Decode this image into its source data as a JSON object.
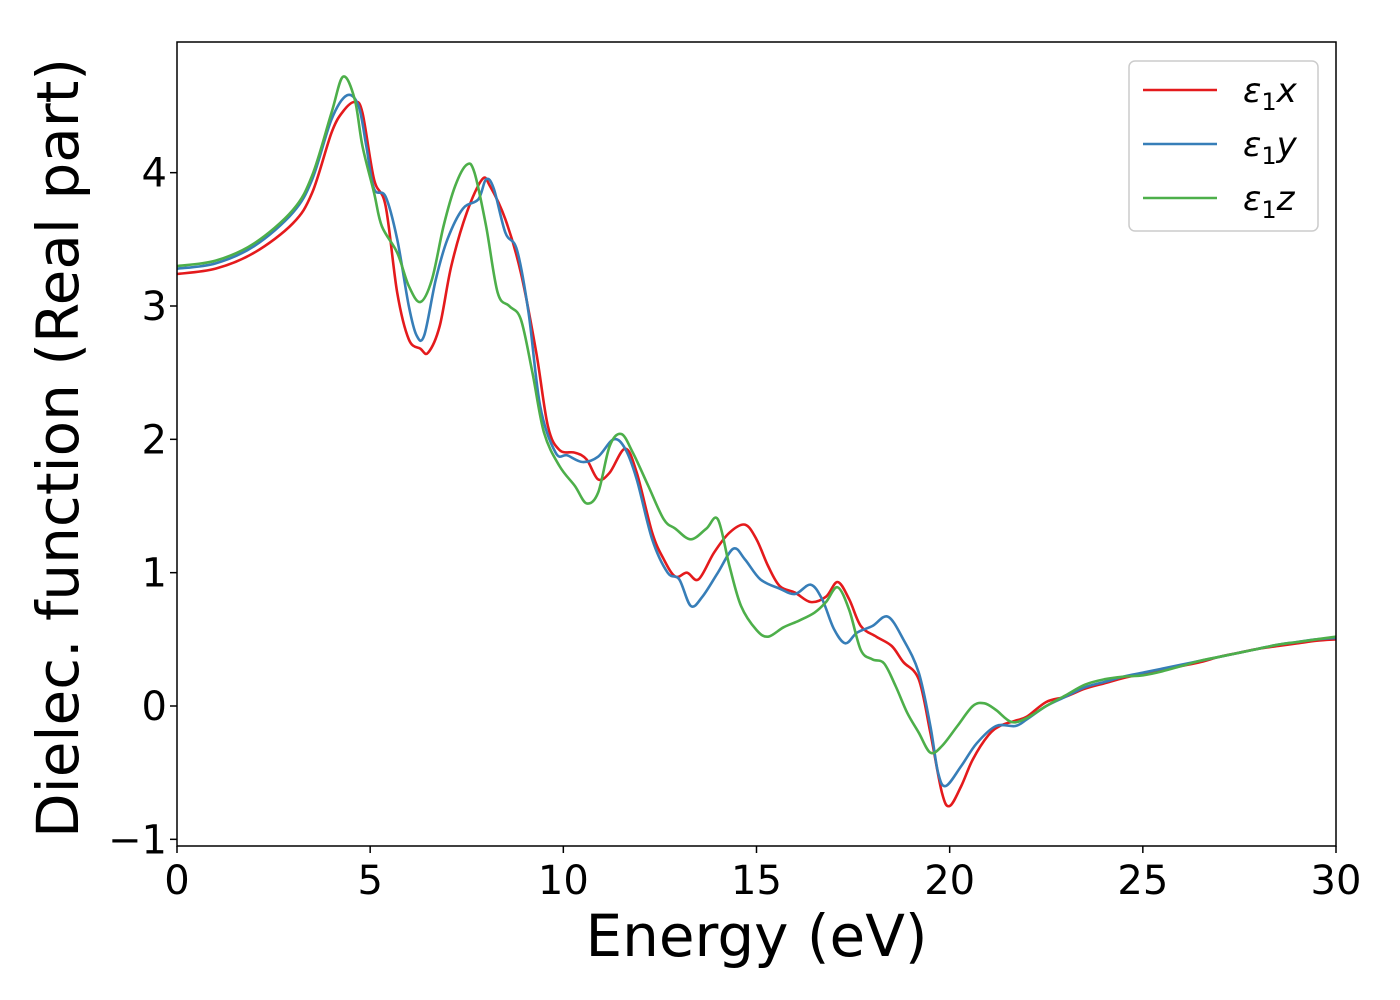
{
  "chart_data": {
    "type": "line",
    "title": "",
    "xlabel": "Energy (eV)",
    "ylabel": "Dielec. function (Real part)",
    "xlim": [
      0,
      30
    ],
    "ylim": [
      -1.05,
      4.98
    ],
    "xticks": [
      0,
      5,
      10,
      15,
      20,
      25,
      30
    ],
    "xtick_labels": [
      "0",
      "5",
      "10",
      "15",
      "20",
      "25",
      "30"
    ],
    "yticks": [
      -1,
      0,
      1,
      2,
      3,
      4
    ],
    "ytick_labels": [
      "−1",
      "0",
      "1",
      "2",
      "3",
      "4"
    ],
    "grid": false,
    "legend_position": "top-right",
    "series": [
      {
        "name": "ε₁x",
        "legend": {
          "base": "ε",
          "sub": "1",
          "var": "x"
        },
        "color": "#e41a1c",
        "points": [
          [
            0,
            3.24
          ],
          [
            1,
            3.28
          ],
          [
            2,
            3.4
          ],
          [
            3,
            3.62
          ],
          [
            3.5,
            3.85
          ],
          [
            4,
            4.3
          ],
          [
            4.3,
            4.46
          ],
          [
            4.6,
            4.53
          ],
          [
            4.8,
            4.45
          ],
          [
            5.1,
            3.95
          ],
          [
            5.4,
            3.75
          ],
          [
            5.7,
            3.1
          ],
          [
            6,
            2.75
          ],
          [
            6.3,
            2.68
          ],
          [
            6.5,
            2.65
          ],
          [
            6.8,
            2.85
          ],
          [
            7.1,
            3.3
          ],
          [
            7.5,
            3.7
          ],
          [
            7.9,
            3.95
          ],
          [
            8.1,
            3.9
          ],
          [
            8.5,
            3.65
          ],
          [
            8.9,
            3.25
          ],
          [
            9.3,
            2.65
          ],
          [
            9.6,
            2.1
          ],
          [
            9.9,
            1.92
          ],
          [
            10.3,
            1.9
          ],
          [
            10.6,
            1.85
          ],
          [
            10.9,
            1.7
          ],
          [
            11.2,
            1.75
          ],
          [
            11.6,
            1.93
          ],
          [
            11.9,
            1.75
          ],
          [
            12.3,
            1.3
          ],
          [
            12.6,
            1.1
          ],
          [
            12.9,
            0.97
          ],
          [
            13.2,
            1.0
          ],
          [
            13.5,
            0.95
          ],
          [
            13.9,
            1.15
          ],
          [
            14.3,
            1.3
          ],
          [
            14.7,
            1.36
          ],
          [
            15,
            1.25
          ],
          [
            15.3,
            1.05
          ],
          [
            15.6,
            0.9
          ],
          [
            16,
            0.85
          ],
          [
            16.4,
            0.78
          ],
          [
            16.8,
            0.82
          ],
          [
            17.1,
            0.93
          ],
          [
            17.4,
            0.8
          ],
          [
            17.7,
            0.6
          ],
          [
            18.1,
            0.52
          ],
          [
            18.5,
            0.45
          ],
          [
            18.8,
            0.33
          ],
          [
            19.2,
            0.2
          ],
          [
            19.5,
            -0.2
          ],
          [
            19.8,
            -0.65
          ],
          [
            20,
            -0.75
          ],
          [
            20.3,
            -0.6
          ],
          [
            20.6,
            -0.4
          ],
          [
            21,
            -0.22
          ],
          [
            21.3,
            -0.15
          ],
          [
            21.7,
            -0.11
          ],
          [
            22,
            -0.08
          ],
          [
            22.5,
            0.03
          ],
          [
            23,
            0.07
          ],
          [
            23.5,
            0.13
          ],
          [
            24,
            0.17
          ],
          [
            24.5,
            0.21
          ],
          [
            25,
            0.24
          ],
          [
            25.5,
            0.27
          ],
          [
            26,
            0.3
          ],
          [
            26.5,
            0.33
          ],
          [
            27,
            0.37
          ],
          [
            27.5,
            0.4
          ],
          [
            28,
            0.43
          ],
          [
            28.5,
            0.45
          ],
          [
            29,
            0.47
          ],
          [
            29.5,
            0.49
          ],
          [
            30,
            0.5
          ]
        ]
      },
      {
        "name": "ε₁y",
        "legend": {
          "base": "ε",
          "sub": "1",
          "var": "y"
        },
        "color": "#377eb8",
        "points": [
          [
            0,
            3.28
          ],
          [
            1,
            3.32
          ],
          [
            2,
            3.45
          ],
          [
            3,
            3.7
          ],
          [
            3.5,
            3.95
          ],
          [
            4,
            4.4
          ],
          [
            4.4,
            4.58
          ],
          [
            4.7,
            4.5
          ],
          [
            4.9,
            4.2
          ],
          [
            5.1,
            3.88
          ],
          [
            5.4,
            3.82
          ],
          [
            5.7,
            3.5
          ],
          [
            6,
            3.0
          ],
          [
            6.2,
            2.78
          ],
          [
            6.4,
            2.78
          ],
          [
            6.7,
            3.2
          ],
          [
            7,
            3.5
          ],
          [
            7.4,
            3.73
          ],
          [
            7.8,
            3.8
          ],
          [
            8,
            3.95
          ],
          [
            8.2,
            3.88
          ],
          [
            8.5,
            3.55
          ],
          [
            8.8,
            3.42
          ],
          [
            9.1,
            2.95
          ],
          [
            9.4,
            2.25
          ],
          [
            9.8,
            1.9
          ],
          [
            10.1,
            1.88
          ],
          [
            10.5,
            1.83
          ],
          [
            10.9,
            1.87
          ],
          [
            11.3,
            2.0
          ],
          [
            11.6,
            1.93
          ],
          [
            11.9,
            1.7
          ],
          [
            12.3,
            1.25
          ],
          [
            12.7,
            1.0
          ],
          [
            13,
            0.95
          ],
          [
            13.3,
            0.75
          ],
          [
            13.6,
            0.82
          ],
          [
            14,
            1.0
          ],
          [
            14.4,
            1.18
          ],
          [
            14.7,
            1.1
          ],
          [
            15.1,
            0.95
          ],
          [
            15.6,
            0.88
          ],
          [
            16,
            0.84
          ],
          [
            16.4,
            0.91
          ],
          [
            16.7,
            0.8
          ],
          [
            17,
            0.58
          ],
          [
            17.3,
            0.47
          ],
          [
            17.6,
            0.55
          ],
          [
            18,
            0.6
          ],
          [
            18.4,
            0.67
          ],
          [
            18.8,
            0.5
          ],
          [
            19.2,
            0.25
          ],
          [
            19.5,
            -0.15
          ],
          [
            19.7,
            -0.5
          ],
          [
            19.9,
            -0.6
          ],
          [
            20.3,
            -0.45
          ],
          [
            20.7,
            -0.28
          ],
          [
            21.2,
            -0.15
          ],
          [
            21.7,
            -0.15
          ],
          [
            22,
            -0.1
          ],
          [
            22.5,
            0.0
          ],
          [
            23,
            0.07
          ],
          [
            23.5,
            0.14
          ],
          [
            24,
            0.18
          ],
          [
            24.5,
            0.22
          ],
          [
            25,
            0.25
          ],
          [
            25.5,
            0.28
          ],
          [
            26,
            0.31
          ],
          [
            26.5,
            0.34
          ],
          [
            27,
            0.37
          ],
          [
            27.5,
            0.4
          ],
          [
            28,
            0.43
          ],
          [
            28.5,
            0.46
          ],
          [
            29,
            0.48
          ],
          [
            29.5,
            0.5
          ],
          [
            30,
            0.51
          ]
        ]
      },
      {
        "name": "ε₁z",
        "legend": {
          "base": "ε",
          "sub": "1",
          "var": "z"
        },
        "color": "#4daf4a",
        "points": [
          [
            0,
            3.3
          ],
          [
            1,
            3.34
          ],
          [
            2,
            3.47
          ],
          [
            3,
            3.72
          ],
          [
            3.5,
            3.98
          ],
          [
            4,
            4.45
          ],
          [
            4.3,
            4.72
          ],
          [
            4.6,
            4.55
          ],
          [
            4.8,
            4.2
          ],
          [
            5.1,
            3.85
          ],
          [
            5.3,
            3.6
          ],
          [
            5.7,
            3.4
          ],
          [
            6,
            3.15
          ],
          [
            6.3,
            3.03
          ],
          [
            6.6,
            3.2
          ],
          [
            6.9,
            3.6
          ],
          [
            7.2,
            3.9
          ],
          [
            7.5,
            4.06
          ],
          [
            7.7,
            4.0
          ],
          [
            8,
            3.6
          ],
          [
            8.3,
            3.1
          ],
          [
            8.6,
            3.0
          ],
          [
            8.9,
            2.9
          ],
          [
            9.2,
            2.5
          ],
          [
            9.5,
            2.05
          ],
          [
            9.9,
            1.8
          ],
          [
            10.3,
            1.65
          ],
          [
            10.6,
            1.52
          ],
          [
            10.9,
            1.6
          ],
          [
            11.2,
            1.95
          ],
          [
            11.5,
            2.04
          ],
          [
            11.8,
            1.9
          ],
          [
            12.2,
            1.65
          ],
          [
            12.6,
            1.4
          ],
          [
            12.9,
            1.33
          ],
          [
            13.3,
            1.25
          ],
          [
            13.7,
            1.33
          ],
          [
            14,
            1.4
          ],
          [
            14.3,
            1.05
          ],
          [
            14.6,
            0.75
          ],
          [
            15,
            0.57
          ],
          [
            15.3,
            0.52
          ],
          [
            15.7,
            0.59
          ],
          [
            16.1,
            0.64
          ],
          [
            16.5,
            0.7
          ],
          [
            16.8,
            0.78
          ],
          [
            17.1,
            0.89
          ],
          [
            17.4,
            0.72
          ],
          [
            17.7,
            0.42
          ],
          [
            18,
            0.35
          ],
          [
            18.3,
            0.32
          ],
          [
            18.6,
            0.15
          ],
          [
            18.9,
            -0.05
          ],
          [
            19.2,
            -0.2
          ],
          [
            19.5,
            -0.35
          ],
          [
            19.8,
            -0.3
          ],
          [
            20.2,
            -0.15
          ],
          [
            20.6,
            0.0
          ],
          [
            20.9,
            0.02
          ],
          [
            21.2,
            -0.03
          ],
          [
            21.6,
            -0.12
          ],
          [
            22,
            -0.09
          ],
          [
            22.5,
            0.0
          ],
          [
            23,
            0.08
          ],
          [
            23.5,
            0.16
          ],
          [
            24,
            0.2
          ],
          [
            24.5,
            0.22
          ],
          [
            25,
            0.23
          ],
          [
            25.5,
            0.26
          ],
          [
            26,
            0.3
          ],
          [
            26.5,
            0.34
          ],
          [
            27,
            0.37
          ],
          [
            27.5,
            0.4
          ],
          [
            28,
            0.43
          ],
          [
            28.5,
            0.46
          ],
          [
            29,
            0.48
          ],
          [
            29.5,
            0.5
          ],
          [
            30,
            0.52
          ]
        ]
      }
    ]
  }
}
